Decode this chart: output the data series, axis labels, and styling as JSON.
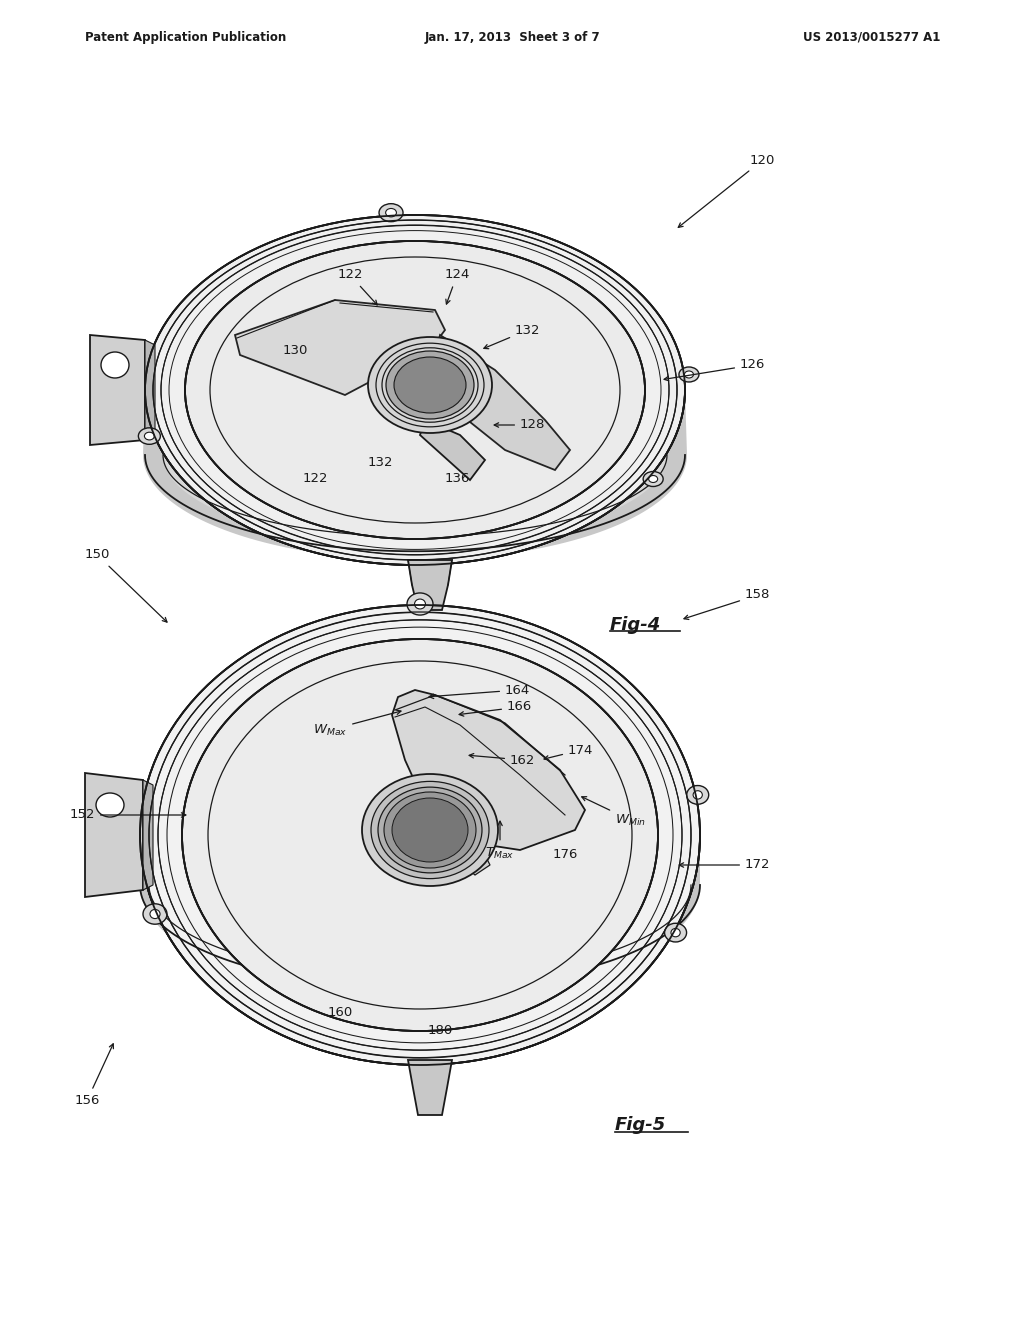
{
  "background_color": "#ffffff",
  "header_left": "Patent Application Publication",
  "header_center": "Jan. 17, 2013  Sheet 3 of 7",
  "header_right": "US 2013/0015277 A1",
  "fig4_label": "Fig-4",
  "fig5_label": "Fig-5",
  "line_color": "#1a1a1a",
  "fill_light": "#e8e8e8",
  "fill_mid": "#d0d0d0",
  "fill_dark": "#b0b0b0"
}
